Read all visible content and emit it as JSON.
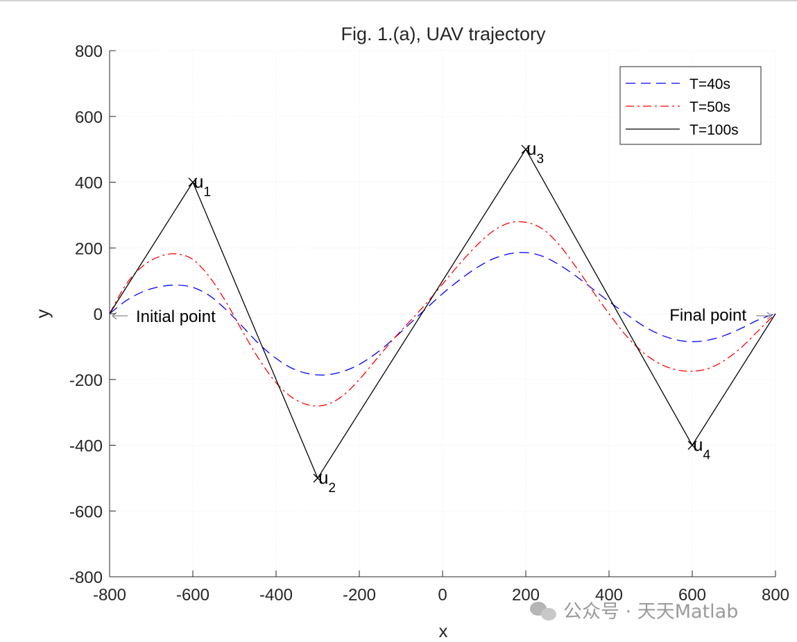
{
  "chart_data": {
    "type": "line",
    "title": "Fig. 1.(a), UAV trajectory",
    "xlabel": "x",
    "ylabel": "y",
    "xlim": [
      -800,
      800
    ],
    "ylim": [
      -800,
      800
    ],
    "xticks": [
      "-800",
      "-600",
      "-400",
      "-200",
      "0",
      "200",
      "400",
      "600",
      "800"
    ],
    "yticks": [
      "800",
      "600",
      "400",
      "200",
      "0",
      "-200",
      "-400",
      "-600",
      "-800"
    ],
    "grid": true,
    "legend_position": "top-right",
    "series": [
      {
        "name": "T=40s",
        "color": "#0000ff",
        "style": "dashed",
        "x": [
          -800,
          -760,
          -720,
          -680,
          -640,
          -600,
          -560,
          -520,
          -480,
          -440,
          -400,
          -360,
          -320,
          -280,
          -240,
          -200,
          -160,
          -120,
          -80,
          -40,
          0,
          40,
          80,
          120,
          160,
          200,
          240,
          280,
          320,
          360,
          400,
          440,
          480,
          520,
          560,
          600,
          640,
          680,
          720,
          760,
          800
        ],
        "y": [
          0,
          40,
          67,
          82,
          87,
          80,
          55,
          12,
          -40,
          -93,
          -136,
          -167,
          -183,
          -186,
          -176,
          -154,
          -121,
          -79,
          -32,
          15,
          61,
          102,
          138,
          166,
          182,
          186,
          175,
          149,
          115,
          76,
          37,
          0,
          -35,
          -62,
          -79,
          -85,
          -80,
          -65,
          -43,
          -18,
          0
        ]
      },
      {
        "name": "T=50s",
        "color": "#ff0000",
        "style": "dashdot",
        "x": [
          -800,
          -760,
          -720,
          -680,
          -640,
          -600,
          -560,
          -520,
          -480,
          -440,
          -400,
          -360,
          -320,
          -280,
          -240,
          -200,
          -160,
          -120,
          -80,
          -40,
          0,
          40,
          80,
          120,
          160,
          200,
          240,
          280,
          320,
          360,
          400,
          440,
          480,
          520,
          560,
          600,
          640,
          680,
          720,
          760,
          800
        ],
        "y": [
          0,
          90,
          145,
          174,
          182,
          165,
          112,
          35,
          -55,
          -140,
          -210,
          -256,
          -278,
          -277,
          -250,
          -200,
          -140,
          -80,
          -25,
          30,
          90,
          150,
          205,
          250,
          276,
          278,
          258,
          210,
          143,
          70,
          0,
          -65,
          -116,
          -151,
          -170,
          -175,
          -166,
          -140,
          -100,
          -50,
          0
        ]
      },
      {
        "name": "T=100s",
        "color": "#000000",
        "style": "solid",
        "x": [
          -800,
          -600,
          -300,
          200,
          600,
          800
        ],
        "y": [
          0,
          400,
          -500,
          500,
          -400,
          0
        ]
      }
    ],
    "waypoints": [
      {
        "label": "u",
        "sub": "1",
        "x": -600,
        "y": 400
      },
      {
        "label": "u",
        "sub": "2",
        "x": -300,
        "y": -500
      },
      {
        "label": "u",
        "sub": "3",
        "x": 200,
        "y": 500
      },
      {
        "label": "u",
        "sub": "4",
        "x": 600,
        "y": -400
      }
    ],
    "annotations": [
      {
        "text": "Initial point",
        "x": -800,
        "y": 0
      },
      {
        "text": "Final point",
        "x": 800,
        "y": 0
      }
    ]
  },
  "watermark": "公众号 · 天天Matlab"
}
